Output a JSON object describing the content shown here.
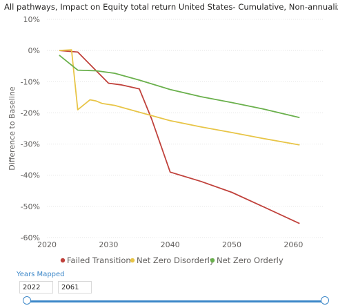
{
  "title": "All pathways, Impact on Equity total return United States- Cumulative, Non-annualized",
  "chart_data": {
    "type": "line",
    "title": "All pathways, Impact on Equity total return United States- Cumulative, Non-annualized",
    "xlabel": "",
    "ylabel": "Difference to Baseline",
    "xlim": [
      2020,
      2065
    ],
    "ylim": [
      -60,
      10
    ],
    "x_ticks": [
      "2020",
      "2030",
      "2040",
      "2050",
      "2060"
    ],
    "y_ticks": [
      "10%",
      "0%",
      "-10%",
      "-20%",
      "-30%",
      "-40%",
      "-50%",
      "-60%"
    ],
    "grid": "horizontal",
    "legend_position": "bottom",
    "series": [
      {
        "name": "Failed Transition",
        "color": "#c0413b",
        "points": [
          [
            2022,
            0
          ],
          [
            2025,
            -0.5
          ],
          [
            2030,
            -10.5
          ],
          [
            2032,
            -11
          ],
          [
            2035,
            -12.3
          ],
          [
            2037,
            -22
          ],
          [
            2040,
            -39
          ],
          [
            2045,
            -42
          ],
          [
            2050,
            -45.5
          ],
          [
            2055,
            -50
          ],
          [
            2061,
            -55.5
          ]
        ]
      },
      {
        "name": "Net Zero Disorderly",
        "color": "#e8c547",
        "points": [
          [
            2022,
            0
          ],
          [
            2024,
            0.2
          ],
          [
            2025,
            -19
          ],
          [
            2027,
            -15.8
          ],
          [
            2028,
            -16.2
          ],
          [
            2029,
            -17
          ],
          [
            2031,
            -17.6
          ],
          [
            2035,
            -19.8
          ],
          [
            2040,
            -22.5
          ],
          [
            2045,
            -24.5
          ],
          [
            2050,
            -26.3
          ],
          [
            2055,
            -28.2
          ],
          [
            2061,
            -30.3
          ]
        ]
      },
      {
        "name": "Net Zero Orderly",
        "color": "#6ab04c",
        "points": [
          [
            2022,
            -1.5
          ],
          [
            2025,
            -6.3
          ],
          [
            2028,
            -6.5
          ],
          [
            2031,
            -7.3
          ],
          [
            2035,
            -9.5
          ],
          [
            2040,
            -12.5
          ],
          [
            2045,
            -14.8
          ],
          [
            2050,
            -16.7
          ],
          [
            2055,
            -18.7
          ],
          [
            2061,
            -21.5
          ]
        ]
      }
    ]
  },
  "slicer": {
    "title": "Years Mapped",
    "start": "2022",
    "end": "2061",
    "range": [
      2022,
      2061
    ],
    "accent": "#3a86c8"
  }
}
